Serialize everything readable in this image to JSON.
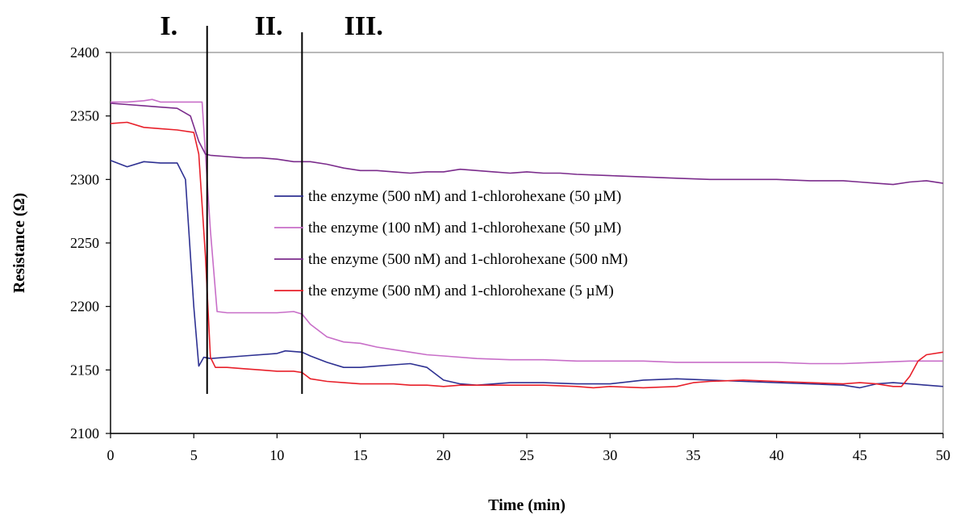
{
  "chart_data": {
    "type": "line",
    "title": "",
    "xlabel": "Time (min)",
    "ylabel": "Resistance (Ω)",
    "xlim": [
      0,
      50
    ],
    "ylim": [
      2100,
      2400
    ],
    "xticks": [
      0,
      5,
      10,
      15,
      20,
      25,
      30,
      35,
      40,
      45,
      50
    ],
    "yticks": [
      2100,
      2150,
      2200,
      2250,
      2300,
      2350,
      2400
    ],
    "grid": false,
    "legend_position": "center",
    "phase_labels": [
      {
        "label": "I.",
        "x": 3.5
      },
      {
        "label": "II.",
        "x": 9.5
      },
      {
        "label": "III.",
        "x": 15.2
      }
    ],
    "phase_dividers": [
      5.8,
      11.5
    ],
    "series": [
      {
        "name": "the enzyme (500 nM) and 1-chlorohexane (50 µM)",
        "color": "#2e3192",
        "points": [
          [
            0,
            2315
          ],
          [
            1,
            2310
          ],
          [
            2,
            2314
          ],
          [
            3,
            2313
          ],
          [
            4,
            2313
          ],
          [
            4.5,
            2300
          ],
          [
            5.0,
            2200
          ],
          [
            5.3,
            2153
          ],
          [
            5.6,
            2160
          ],
          [
            6,
            2159
          ],
          [
            8,
            2161
          ],
          [
            10,
            2163
          ],
          [
            10.5,
            2165
          ],
          [
            11.5,
            2164
          ],
          [
            12,
            2161
          ],
          [
            13,
            2156
          ],
          [
            14,
            2152
          ],
          [
            15,
            2152
          ],
          [
            16,
            2153
          ],
          [
            17,
            2154
          ],
          [
            18,
            2155
          ],
          [
            19,
            2152
          ],
          [
            20,
            2142
          ],
          [
            21,
            2139
          ],
          [
            22,
            2138
          ],
          [
            24,
            2140
          ],
          [
            26,
            2140
          ],
          [
            28,
            2139
          ],
          [
            30,
            2139
          ],
          [
            32,
            2142
          ],
          [
            34,
            2143
          ],
          [
            36,
            2142
          ],
          [
            38,
            2141
          ],
          [
            40,
            2140
          ],
          [
            42,
            2139
          ],
          [
            44,
            2138
          ],
          [
            45,
            2136
          ],
          [
            46,
            2139
          ],
          [
            47,
            2140
          ],
          [
            48,
            2139
          ],
          [
            49,
            2138
          ],
          [
            50,
            2137
          ]
        ]
      },
      {
        "name": "the enzyme (100 nM) and 1-chlorohexane (50 µM)",
        "color": "#c86ec8",
        "points": [
          [
            0,
            2361
          ],
          [
            1,
            2361
          ],
          [
            2,
            2362
          ],
          [
            2.5,
            2363
          ],
          [
            3,
            2361
          ],
          [
            4,
            2361
          ],
          [
            5,
            2361
          ],
          [
            5.5,
            2361
          ],
          [
            6.0,
            2260
          ],
          [
            6.4,
            2196
          ],
          [
            7,
            2195
          ],
          [
            8,
            2195
          ],
          [
            9,
            2195
          ],
          [
            10,
            2195
          ],
          [
            11,
            2196
          ],
          [
            11.5,
            2194
          ],
          [
            12,
            2186
          ],
          [
            13,
            2176
          ],
          [
            14,
            2172
          ],
          [
            15,
            2171
          ],
          [
            16,
            2168
          ],
          [
            17,
            2166
          ],
          [
            18,
            2164
          ],
          [
            19,
            2162
          ],
          [
            20,
            2161
          ],
          [
            22,
            2159
          ],
          [
            24,
            2158
          ],
          [
            26,
            2158
          ],
          [
            28,
            2157
          ],
          [
            30,
            2157
          ],
          [
            32,
            2157
          ],
          [
            34,
            2156
          ],
          [
            36,
            2156
          ],
          [
            38,
            2156
          ],
          [
            40,
            2156
          ],
          [
            42,
            2155
          ],
          [
            44,
            2155
          ],
          [
            46,
            2156
          ],
          [
            48,
            2157
          ],
          [
            50,
            2157
          ]
        ]
      },
      {
        "name": "the enzyme (500 nM) and 1-chlorohexane (500 nM)",
        "color": "#7b2c8c",
        "points": [
          [
            0,
            2360
          ],
          [
            1,
            2359
          ],
          [
            2,
            2358
          ],
          [
            3,
            2357
          ],
          [
            4,
            2356
          ],
          [
            4.8,
            2350
          ],
          [
            5.3,
            2330
          ],
          [
            5.7,
            2320
          ],
          [
            6,
            2319
          ],
          [
            7,
            2318
          ],
          [
            8,
            2317
          ],
          [
            9,
            2317
          ],
          [
            10,
            2316
          ],
          [
            11,
            2314
          ],
          [
            12,
            2314
          ],
          [
            13,
            2312
          ],
          [
            14,
            2309
          ],
          [
            15,
            2307
          ],
          [
            16,
            2307
          ],
          [
            17,
            2306
          ],
          [
            18,
            2305
          ],
          [
            19,
            2306
          ],
          [
            20,
            2306
          ],
          [
            21,
            2308
          ],
          [
            22,
            2307
          ],
          [
            23,
            2306
          ],
          [
            24,
            2305
          ],
          [
            25,
            2306
          ],
          [
            26,
            2305
          ],
          [
            27,
            2305
          ],
          [
            28,
            2304
          ],
          [
            30,
            2303
          ],
          [
            32,
            2302
          ],
          [
            34,
            2301
          ],
          [
            36,
            2300
          ],
          [
            38,
            2300
          ],
          [
            40,
            2300
          ],
          [
            42,
            2299
          ],
          [
            44,
            2299
          ],
          [
            45,
            2298
          ],
          [
            46,
            2297
          ],
          [
            47,
            2296
          ],
          [
            48,
            2298
          ],
          [
            49,
            2299
          ],
          [
            50,
            2297
          ]
        ]
      },
      {
        "name": "the enzyme (500 nM) and 1-chlorohexane (5 µM)",
        "color": "#e8202a",
        "points": [
          [
            0,
            2344
          ],
          [
            1,
            2345
          ],
          [
            2,
            2341
          ],
          [
            3,
            2340
          ],
          [
            4,
            2339
          ],
          [
            5,
            2337
          ],
          [
            5.3,
            2320
          ],
          [
            5.7,
            2240
          ],
          [
            6.0,
            2160
          ],
          [
            6.3,
            2152
          ],
          [
            7,
            2152
          ],
          [
            8,
            2151
          ],
          [
            9,
            2150
          ],
          [
            10,
            2149
          ],
          [
            11,
            2149
          ],
          [
            11.5,
            2148
          ],
          [
            12,
            2143
          ],
          [
            13,
            2141
          ],
          [
            14,
            2140
          ],
          [
            15,
            2139
          ],
          [
            16,
            2139
          ],
          [
            17,
            2139
          ],
          [
            18,
            2138
          ],
          [
            19,
            2138
          ],
          [
            20,
            2137
          ],
          [
            21,
            2138
          ],
          [
            22,
            2138
          ],
          [
            24,
            2138
          ],
          [
            26,
            2138
          ],
          [
            28,
            2137
          ],
          [
            29,
            2136
          ],
          [
            30,
            2137
          ],
          [
            32,
            2136
          ],
          [
            34,
            2137
          ],
          [
            35,
            2140
          ],
          [
            36,
            2141
          ],
          [
            38,
            2142
          ],
          [
            40,
            2141
          ],
          [
            42,
            2140
          ],
          [
            44,
            2139
          ],
          [
            45,
            2140
          ],
          [
            46,
            2139
          ],
          [
            47,
            2137
          ],
          [
            47.5,
            2137
          ],
          [
            48,
            2145
          ],
          [
            48.5,
            2157
          ],
          [
            49,
            2162
          ],
          [
            50,
            2164
          ]
        ]
      }
    ]
  }
}
